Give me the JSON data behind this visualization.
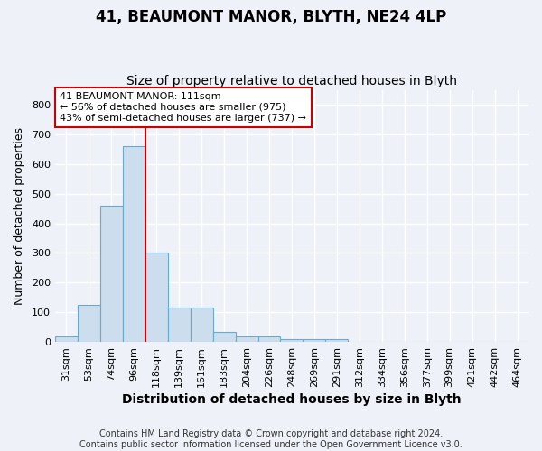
{
  "title1": "41, BEAUMONT MANOR, BLYTH, NE24 4LP",
  "title2": "Size of property relative to detached houses in Blyth",
  "xlabel": "Distribution of detached houses by size in Blyth",
  "ylabel": "Number of detached properties",
  "bar_labels": [
    "31sqm",
    "53sqm",
    "74sqm",
    "96sqm",
    "118sqm",
    "139sqm",
    "161sqm",
    "183sqm",
    "204sqm",
    "226sqm",
    "248sqm",
    "269sqm",
    "291sqm",
    "312sqm",
    "334sqm",
    "356sqm",
    "377sqm",
    "399sqm",
    "421sqm",
    "442sqm",
    "464sqm"
  ],
  "bar_heights": [
    18,
    125,
    460,
    660,
    300,
    117,
    117,
    33,
    17,
    17,
    8,
    8,
    8,
    0,
    0,
    0,
    0,
    0,
    0,
    0,
    0
  ],
  "bar_color": "#ccdded",
  "bar_edge_color": "#6aaace",
  "annotation_text": "41 BEAUMONT MANOR: 111sqm\n← 56% of detached houses are smaller (975)\n43% of semi-detached houses are larger (737) →",
  "red_line_x": 3.5,
  "ylim": [
    0,
    850
  ],
  "yticks": [
    0,
    100,
    200,
    300,
    400,
    500,
    600,
    700,
    800
  ],
  "footer_text": "Contains HM Land Registry data © Crown copyright and database right 2024.\nContains public sector information licensed under the Open Government Licence v3.0.",
  "bg_color": "#eef2f8",
  "grid_color": "#ffffff",
  "annotation_box_color": "#ffffff",
  "annotation_box_edge": "#cc0000",
  "red_line_color": "#cc0000",
  "title1_fontsize": 12,
  "title2_fontsize": 10,
  "xlabel_fontsize": 10,
  "ylabel_fontsize": 9,
  "footer_fontsize": 7,
  "tick_fontsize": 8,
  "annot_fontsize": 8
}
